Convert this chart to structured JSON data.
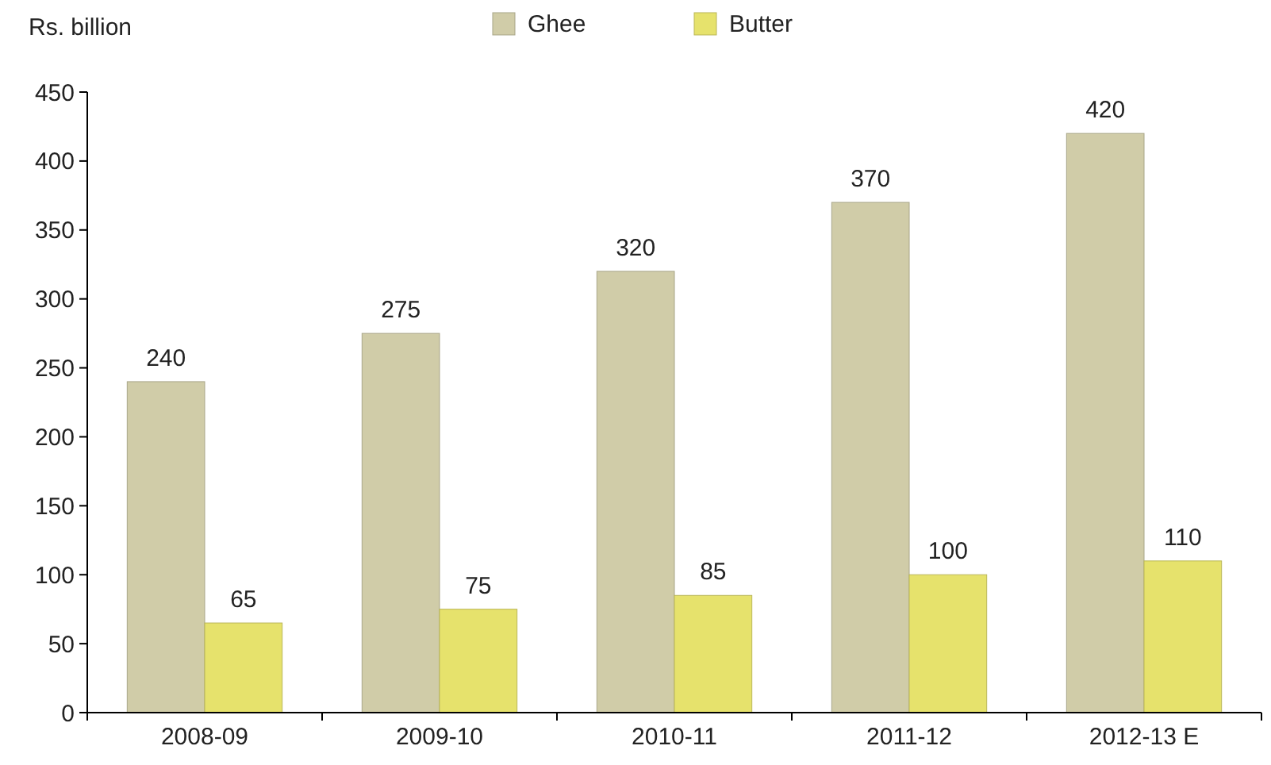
{
  "chart_data": {
    "type": "bar",
    "ylabel": "Rs. billion",
    "categories": [
      "2008-09",
      "2009-10",
      "2010-11",
      "2011-12",
      "2012-13 E"
    ],
    "series": [
      {
        "name": "Ghee",
        "color": "#d0cca8",
        "values": [
          240,
          275,
          320,
          370,
          420
        ]
      },
      {
        "name": "Butter",
        "color": "#e6e26c",
        "values": [
          65,
          75,
          85,
          100,
          110
        ]
      }
    ],
    "ylim": [
      0,
      450
    ],
    "yticks": [
      0,
      50,
      100,
      150,
      200,
      250,
      300,
      350,
      400,
      450
    ],
    "data_labels": true,
    "legend": "top",
    "grid": false
  }
}
